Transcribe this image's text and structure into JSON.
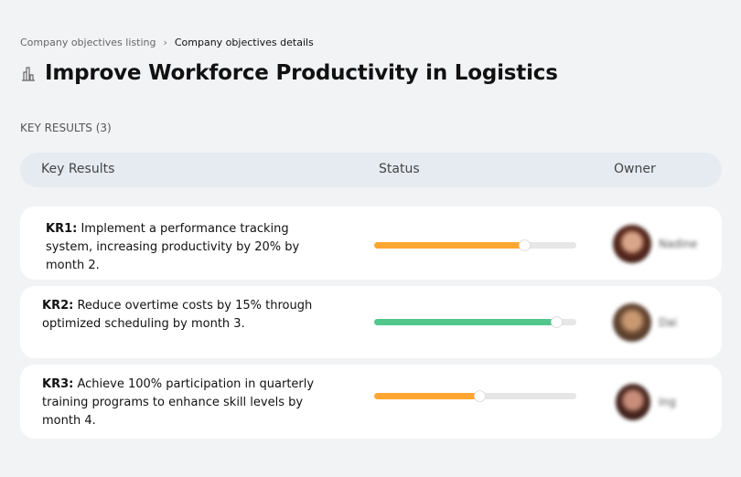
{
  "breadcrumb": {
    "items": [
      "Company objectives listing",
      "Company objectives details"
    ],
    "separator": "›"
  },
  "page": {
    "icon": "building-chart-icon",
    "title": "Improve Workforce Productivity in Logistics"
  },
  "key_results_heading": "KEY RESULTS (3)",
  "table": {
    "headers": {
      "key_results": "Key Results",
      "status": "Status",
      "owner": "Owner"
    },
    "rows": [
      {
        "id": "KR1:",
        "text": " Implement a performance tracking system, increasing productivity by 20% by month 2.",
        "progress_percent": 74,
        "color": "#ffa630",
        "owner": "Nadine"
      },
      {
        "id": "KR2:",
        "text": " Reduce overtime costs by 15% through optimized scheduling by month 3.",
        "progress_percent": 90,
        "color": "#52c78c",
        "owner": "Dai"
      },
      {
        "id": "KR3:",
        "text": " Achieve 100% participation in quarterly training programs to enhance skill levels by month 4.",
        "progress_percent": 52,
        "color": "#ffa630",
        "owner": "Ing"
      }
    ]
  }
}
